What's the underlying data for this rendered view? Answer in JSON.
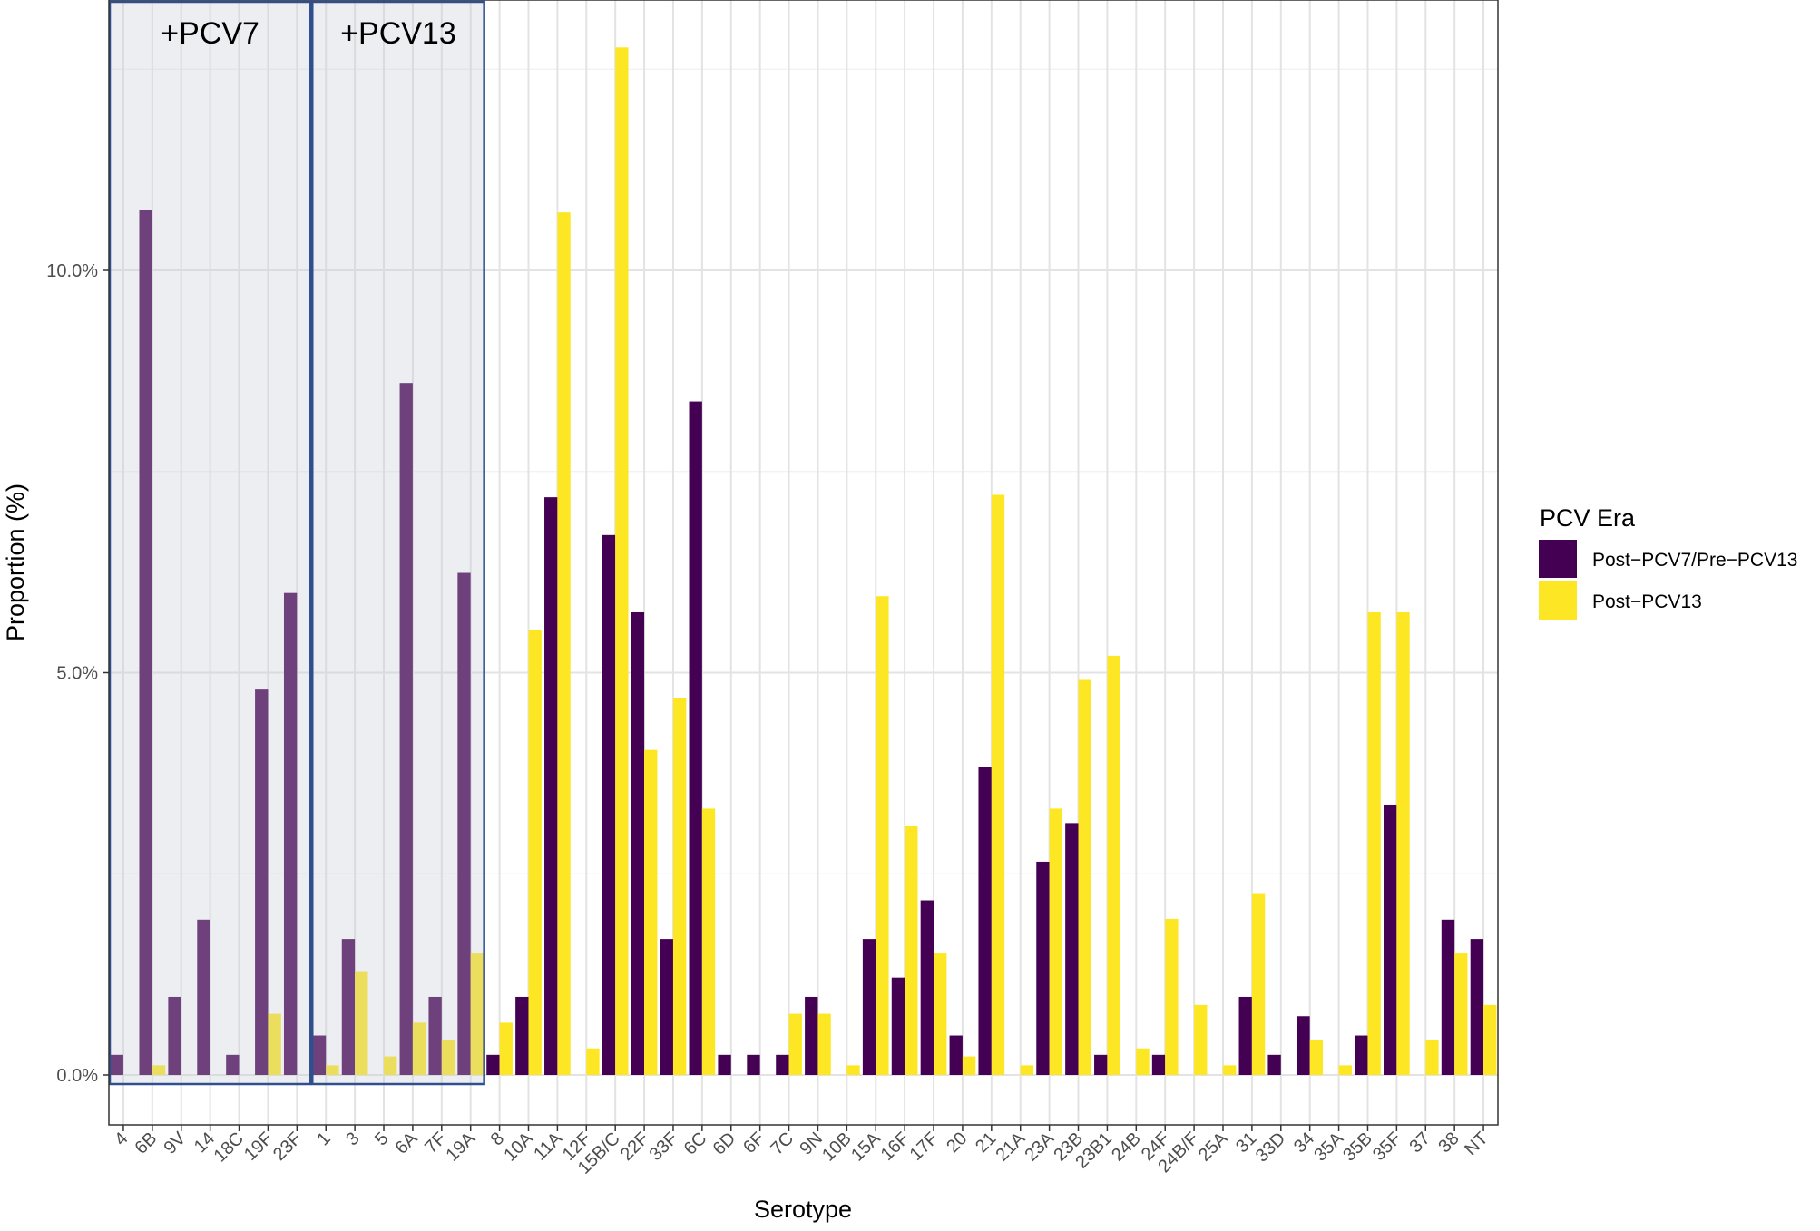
{
  "chart_data": {
    "type": "bar",
    "xlabel": "Serotype",
    "ylabel": "Proportion (%)",
    "ylim": [
      -0.5,
      13.3
    ],
    "yticks": [
      0,
      5,
      10
    ],
    "ytick_labels": [
      "0.0%",
      "5.0%",
      "10.0%"
    ],
    "grid": true,
    "legend": {
      "title": "PCV Era",
      "position": "right"
    },
    "categories": [
      "4",
      "6B",
      "9V",
      "14",
      "18C",
      "19F",
      "23F",
      "1",
      "3",
      "5",
      "6A",
      "7F",
      "19A",
      "8",
      "10A",
      "11A",
      "12F",
      "15B/C",
      "22F",
      "33F",
      "6C",
      "6D",
      "6F",
      "7C",
      "9N",
      "10B",
      "15A",
      "16F",
      "17F",
      "20",
      "21",
      "21A",
      "23A",
      "23B",
      "23B1",
      "24B",
      "24F",
      "24B/F",
      "25A",
      "31",
      "33D",
      "34",
      "35A",
      "35B",
      "35F",
      "37",
      "38",
      "NT"
    ],
    "series": [
      {
        "name": "Post−PCV7/Pre−PCV13",
        "color": "#440154",
        "values": [
          0.25,
          10.75,
          0.97,
          1.93,
          0.25,
          4.79,
          5.99,
          0.49,
          1.69,
          0,
          8.6,
          0.97,
          6.24,
          0.25,
          0.97,
          7.18,
          0,
          6.71,
          5.75,
          1.69,
          8.37,
          0.25,
          0.25,
          0.25,
          0.97,
          0,
          1.69,
          1.21,
          2.17,
          0.49,
          3.83,
          0,
          2.65,
          3.13,
          0.25,
          0,
          0.25,
          0,
          0,
          0.97,
          0.25,
          0.73,
          0,
          0.49,
          3.36,
          0,
          1.93,
          1.69
        ]
      },
      {
        "name": "Post−PCV13",
        "color": "#FDE725",
        "values": [
          0,
          0.12,
          0,
          0,
          0,
          0.76,
          0,
          0.12,
          1.29,
          0.23,
          0.65,
          0.44,
          1.51,
          0.65,
          5.53,
          10.72,
          0.33,
          12.77,
          4.04,
          4.69,
          3.31,
          0,
          0,
          0.76,
          0.76,
          0.12,
          5.95,
          3.09,
          1.51,
          0.23,
          7.21,
          0.12,
          3.31,
          4.91,
          5.21,
          0.33,
          1.94,
          0.87,
          0.12,
          2.26,
          0,
          0.44,
          0.12,
          5.75,
          5.75,
          0.44,
          1.51,
          0.87
        ]
      }
    ],
    "annotations": [
      {
        "label": "+PCV7",
        "from": "4",
        "to": "23F"
      },
      {
        "label": "+PCV13",
        "from": "1",
        "to": "19A"
      }
    ]
  }
}
